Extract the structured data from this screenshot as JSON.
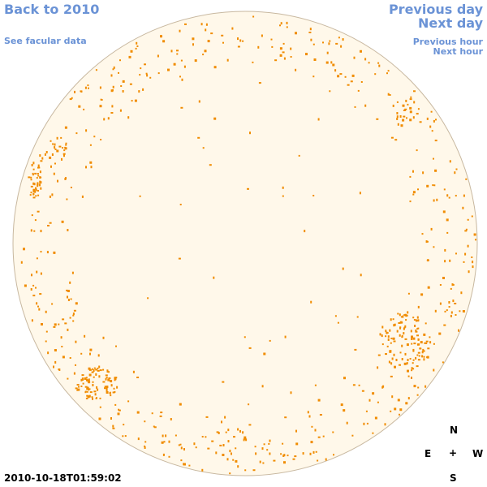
{
  "nav": {
    "back_label": "Back to 2010",
    "facular_label": "See facular data",
    "previous_day_label": "Previous day",
    "next_day_label": "Next day",
    "previous_hour_label": "Previous hour",
    "next_hour_label": "Next hour"
  },
  "compass": {
    "north": "N",
    "east": "E",
    "center": "+",
    "west": "W",
    "south": "S"
  },
  "timestamp": "2010-10-18T01:59:02",
  "colors": {
    "link": "#6b93d6",
    "disk_fill": "#fff8ea",
    "disk_edge": "#c8b8a0",
    "facula": "#f08c00"
  }
}
